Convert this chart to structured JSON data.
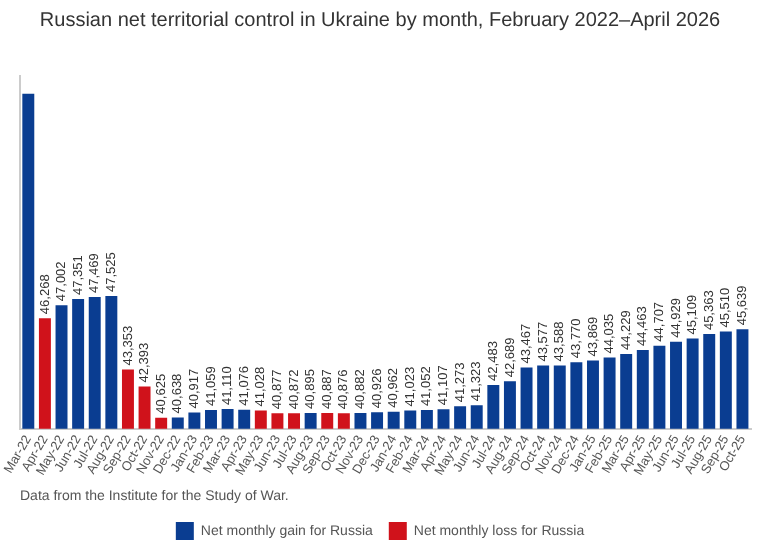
{
  "chart_data": {
    "type": "bar",
    "title": "Russian net territorial control in Ukraine by month, February 2022–April 2026",
    "categories": [
      "Mar-22",
      "Apr-22",
      "May-22",
      "Jun-22",
      "Jul-22",
      "Aug-22",
      "Sep-22",
      "Oct-22",
      "Nov-22",
      "Dec-22",
      "Jan-23",
      "Feb-23",
      "Mar-23",
      "Apr-23",
      "May-23",
      "Jun-23",
      "Jul-23",
      "Aug-23",
      "Sep-23",
      "Oct-23",
      "Nov-23",
      "Dec-23",
      "Jan-24",
      "Feb-24",
      "Mar-24",
      "Apr-24",
      "May-24",
      "Jun-24",
      "Jul-24",
      "Aug-24",
      "Sep-24",
      "Oct-24",
      "Nov-24",
      "Dec-24",
      "Jan-25",
      "Feb-25",
      "Mar-25",
      "Apr-25",
      "May-25",
      "Jun-25",
      "Jul-25",
      "Aug-25",
      "Sep-25",
      "Oct-25"
    ],
    "series": [
      {
        "name": "Net monthly gain for Russia",
        "color": "#0a3d91",
        "values": [
          59000,
          null,
          47002,
          47351,
          47469,
          47525,
          null,
          null,
          null,
          40638,
          40917,
          41059,
          41110,
          41076,
          null,
          null,
          null,
          40895,
          null,
          null,
          40882,
          40926,
          40962,
          41023,
          41052,
          41107,
          41273,
          41323,
          42483,
          42689,
          43467,
          43577,
          43588,
          43770,
          43869,
          44035,
          44229,
          44463,
          44707,
          44929,
          45109,
          45363,
          45510,
          45639
        ],
        "value_labels": [
          null,
          null,
          "47,002",
          "47,351",
          "47,469",
          "47,525",
          null,
          null,
          null,
          "40,638",
          "40,917",
          "41,059",
          "41,110",
          "41,076",
          null,
          null,
          null,
          "40,895",
          null,
          null,
          "40,882",
          "40,926",
          "40,962",
          "41,023",
          "41,052",
          "41,107",
          "41,273",
          "41,323",
          "42,483",
          "42,689",
          "43,467",
          "43,577",
          "43,588",
          "43,770",
          "43,869",
          "44,035",
          "44,229",
          "44,463",
          "44,707",
          "44,929",
          "45,109",
          "45,363",
          "45,510",
          "45,639"
        ]
      },
      {
        "name": "Net monthly loss for Russia",
        "color": "#d0121b",
        "values": [
          null,
          46268,
          null,
          null,
          null,
          null,
          43353,
          42393,
          40625,
          null,
          null,
          null,
          null,
          null,
          41028,
          40877,
          40872,
          null,
          40887,
          40876,
          null,
          null,
          null,
          null,
          null,
          null,
          null,
          null,
          null,
          null,
          null,
          null,
          null,
          null,
          null,
          null,
          null,
          null,
          null,
          null,
          null,
          null,
          null,
          null
        ],
        "value_labels": [
          null,
          "46,268",
          null,
          null,
          null,
          null,
          "43,353",
          "42,393",
          "40,625",
          null,
          null,
          null,
          null,
          null,
          "41,028",
          "40,877",
          "40,872",
          null,
          "40,887",
          "40,876",
          null,
          null,
          null,
          null,
          null,
          null,
          null,
          null,
          null,
          null,
          null,
          null,
          null,
          null,
          null,
          null,
          null,
          null,
          null,
          null,
          null,
          null,
          null,
          null
        ]
      }
    ],
    "ylim": [
      40000,
      60000
    ],
    "tick_labels": "x",
    "grid": false,
    "legend": "bottom",
    "annotations": [
      "Data from the Institute for the Study of War."
    ]
  }
}
